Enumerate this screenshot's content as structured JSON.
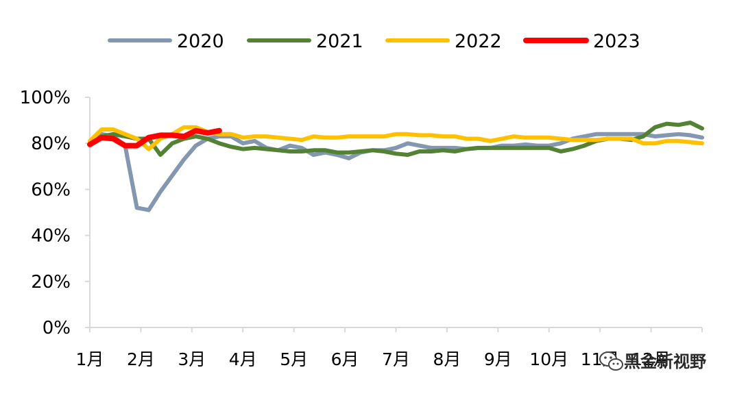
{
  "chart_data": {
    "type": "line",
    "title": "",
    "xlabel": "",
    "ylabel": "",
    "x_tick_labels": [
      "1月",
      "2月",
      "3月",
      "4月",
      "5月",
      "6月",
      "7月",
      "8月",
      "9月",
      "10月",
      "11月",
      "12月"
    ],
    "y_tick_labels": [
      "0%",
      "20%",
      "40%",
      "60%",
      "80%",
      "100%"
    ],
    "ylim": [
      0,
      100
    ],
    "x_unit": "week of year",
    "xlim": [
      1,
      53
    ],
    "grid": false,
    "legend_position": "top",
    "series": [
      {
        "name": "2020",
        "color": "#8497B0",
        "x": [
          1,
          2,
          3,
          4,
          5,
          6,
          7,
          8,
          9,
          10,
          11,
          12,
          13,
          14,
          15,
          16,
          17,
          18,
          19,
          20,
          21,
          22,
          23,
          24,
          25,
          26,
          27,
          28,
          29,
          30,
          31,
          32,
          33,
          34,
          35,
          36,
          37,
          38,
          39,
          40,
          41,
          42,
          43,
          44,
          45,
          46,
          47,
          48,
          49,
          50,
          51,
          52,
          53
        ],
        "values": [
          80,
          84,
          83,
          79,
          52,
          51,
          59,
          66,
          73,
          79,
          82,
          83,
          83,
          80,
          81,
          78,
          77,
          79,
          78,
          75,
          76,
          75,
          73.5,
          76,
          77,
          77,
          78,
          80,
          79,
          78,
          78,
          78,
          77.5,
          78,
          78,
          79,
          79,
          79.5,
          79,
          79,
          80,
          82,
          83,
          84,
          84,
          84,
          84,
          84,
          83,
          83.5,
          84,
          83.5,
          82.5
        ]
      },
      {
        "name": "2021",
        "color": "#548235",
        "x": [
          1,
          2,
          3,
          4,
          5,
          6,
          7,
          8,
          9,
          10,
          11,
          12,
          13,
          14,
          15,
          16,
          17,
          18,
          19,
          20,
          21,
          22,
          23,
          24,
          25,
          26,
          27,
          28,
          29,
          30,
          31,
          32,
          33,
          34,
          35,
          36,
          37,
          38,
          39,
          40,
          41,
          42,
          43,
          44,
          45,
          46,
          47,
          48,
          49,
          50,
          51,
          52,
          53
        ],
        "values": [
          80,
          83,
          84,
          83,
          82,
          82,
          75,
          80,
          82,
          83,
          82,
          80,
          78.5,
          77.5,
          78,
          77.5,
          77,
          76.5,
          76.5,
          77,
          77,
          76,
          76,
          76.5,
          77,
          76.5,
          75.5,
          75,
          76.5,
          76.5,
          77,
          76.5,
          77.5,
          78,
          78,
          78,
          78,
          78,
          78,
          78,
          76.5,
          77.5,
          79,
          81,
          82,
          82,
          81.5,
          83,
          87,
          88.5,
          88,
          89,
          86.5
        ]
      },
      {
        "name": "2022",
        "color": "#FFC000",
        "x": [
          1,
          2,
          3,
          4,
          5,
          6,
          7,
          8,
          9,
          10,
          11,
          12,
          13,
          14,
          15,
          16,
          17,
          18,
          19,
          20,
          21,
          22,
          23,
          24,
          25,
          26,
          27,
          28,
          29,
          30,
          31,
          32,
          33,
          34,
          35,
          36,
          37,
          38,
          39,
          40,
          41,
          42,
          43,
          44,
          45,
          46,
          47,
          48,
          49,
          50,
          51,
          52,
          53
        ],
        "values": [
          81,
          86,
          86,
          84,
          82,
          77.5,
          82,
          84,
          87,
          87,
          85,
          84,
          84,
          82.5,
          83,
          83,
          82.5,
          82,
          81.5,
          83,
          82.5,
          82.5,
          83,
          83,
          83,
          83,
          84,
          84,
          83.5,
          83.5,
          83,
          83,
          82,
          82,
          81,
          82,
          83,
          82.5,
          82.5,
          82.5,
          82,
          81.5,
          81.5,
          81.5,
          82,
          82,
          82,
          80,
          80,
          81,
          81,
          80.5,
          80
        ]
      },
      {
        "name": "2023",
        "color": "#FF0000",
        "x": [
          1,
          2,
          3,
          4,
          5,
          6,
          7,
          8,
          9,
          10,
          11,
          12
        ],
        "values": [
          79.5,
          82.5,
          82,
          79,
          79,
          82.5,
          83.5,
          83.5,
          83,
          85.5,
          84.5,
          85.5
        ]
      }
    ]
  },
  "watermark": {
    "text": "黑金新视野",
    "icon": "wechat-icon"
  }
}
